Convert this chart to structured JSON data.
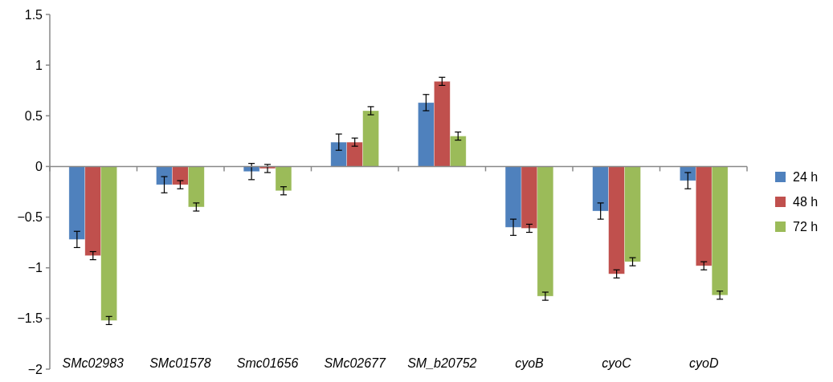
{
  "chart_data": {
    "type": "bar",
    "categories": [
      "SMc02983",
      "SMc01578",
      "Smc01656",
      "SMc02677",
      "SM_b20752",
      "cyoB",
      "cyoC",
      "cyoD"
    ],
    "series": [
      {
        "name": "24 h",
        "color": "#4f81bd",
        "values": [
          -0.72,
          -0.18,
          -0.05,
          0.24,
          0.63,
          -0.6,
          -0.44,
          -0.14
        ],
        "errors": [
          0.08,
          0.08,
          0.08,
          0.08,
          0.08,
          0.08,
          0.08,
          0.08
        ]
      },
      {
        "name": "48 h",
        "color": "#c0504d",
        "values": [
          -0.88,
          -0.18,
          -0.02,
          0.24,
          0.84,
          -0.61,
          -1.06,
          -0.98
        ],
        "errors": [
          0.04,
          0.04,
          0.04,
          0.04,
          0.04,
          0.04,
          0.04,
          0.04
        ]
      },
      {
        "name": "72 h",
        "color": "#9bbb59",
        "values": [
          -1.52,
          -0.4,
          -0.24,
          0.55,
          0.3,
          -1.28,
          -0.94,
          -1.27
        ],
        "errors": [
          0.04,
          0.04,
          0.04,
          0.04,
          0.04,
          0.04,
          0.04,
          0.04
        ]
      }
    ],
    "ylim": [
      -2,
      1.5
    ],
    "yticks": [
      -2,
      -1.5,
      -1,
      -0.5,
      0,
      0.5,
      1,
      1.5
    ],
    "legend": "right"
  }
}
